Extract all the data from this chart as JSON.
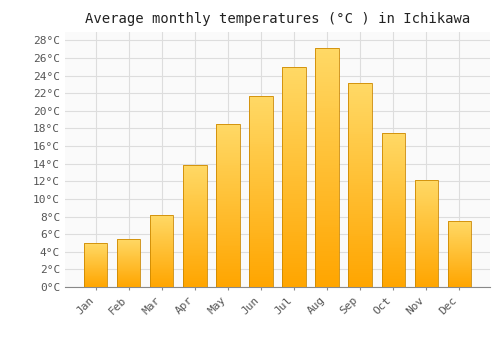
{
  "title": "Average monthly temperatures (°C ) in Ichikawa",
  "months": [
    "Jan",
    "Feb",
    "Mar",
    "Apr",
    "May",
    "Jun",
    "Jul",
    "Aug",
    "Sep",
    "Oct",
    "Nov",
    "Dec"
  ],
  "temperatures": [
    5.0,
    5.5,
    8.2,
    13.9,
    18.5,
    21.7,
    25.0,
    27.1,
    23.1,
    17.5,
    12.2,
    7.5
  ],
  "bar_color_bottom": "#FFA500",
  "bar_color_top": "#FFD966",
  "bar_edge_color": "#CC8800",
  "ylim": [
    0,
    29
  ],
  "yticks": [
    0,
    2,
    4,
    6,
    8,
    10,
    12,
    14,
    16,
    18,
    20,
    22,
    24,
    26,
    28
  ],
  "ylabel_suffix": "°C",
  "background_color": "#FFFFFF",
  "plot_bg_color": "#FAFAFA",
  "grid_color": "#DDDDDD",
  "title_fontsize": 10,
  "tick_fontsize": 8,
  "font_family": "monospace"
}
